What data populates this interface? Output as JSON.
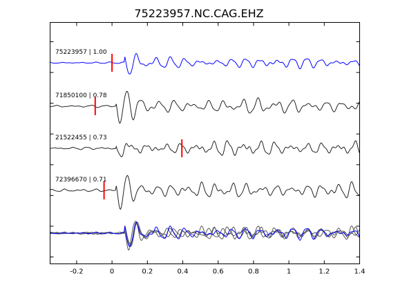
{
  "chart_data": {
    "type": "line",
    "title": "75223957.NC.CAG.EHZ",
    "xlabel": "",
    "ylabel": "",
    "xlim": [
      -0.35,
      1.4
    ],
    "x_ticks": [
      -0.2,
      0,
      0.2,
      0.4,
      0.6,
      0.8,
      1,
      1.2,
      1.4
    ],
    "x_tick_labels": [
      "-0.2",
      "0",
      "0.2",
      "0.4",
      "0.6",
      "0.8",
      "1",
      "1.2",
      "1.4"
    ],
    "y_tick_count": 8,
    "grid": false,
    "traces": [
      {
        "label": "75223957 | 1.00",
        "color": "#0000ff",
        "pick_time": 0.0,
        "pick_color": "#ff0000"
      },
      {
        "label": "71850100 | 0.78",
        "color": "#222222",
        "pick_time": -0.095,
        "pick_color": "#ff0000"
      },
      {
        "label": "21522455 | 0.73",
        "color": "#222222",
        "pick_time": 0.395,
        "pick_color": "#ff0000"
      },
      {
        "label": "72396670 | 0.71",
        "color": "#222222",
        "pick_time": -0.045,
        "pick_color": "#ff0000"
      }
    ],
    "overlay": {
      "reference_color": "#0000ff",
      "other_color": "#555555"
    }
  }
}
